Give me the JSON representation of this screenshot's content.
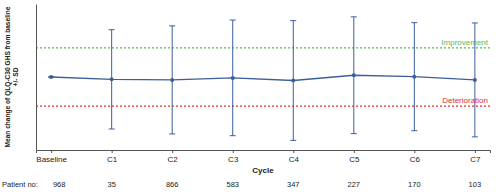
{
  "chart_data": {
    "type": "line",
    "xlabel": "Cycle",
    "ylabel": [
      "Mean change of QLQ-C30 GHS from baseline",
      "+/- SD"
    ],
    "categories": [
      "Baseline",
      "C1",
      "C2",
      "C3",
      "C4",
      "C5",
      "C6",
      "C7"
    ],
    "series": [
      {
        "color": "#3c5f9c",
        "marker": "circle",
        "values": [
          0,
          -0.8,
          -1.0,
          -0.3,
          -1.2,
          0.6,
          0.1,
          -1.0
        ],
        "errors": [
          0,
          17,
          18.5,
          19.8,
          20.5,
          20.0,
          18.5,
          19.5
        ]
      }
    ],
    "ylim": [
      -25,
      25
    ],
    "tick_labels": "x",
    "annotations": [
      {
        "label": "Improvement",
        "value": 10,
        "color": "#5cb85c",
        "line_style": "dotted"
      },
      {
        "label": "Deterioration",
        "value": -10,
        "color": "#e0302a",
        "line_style": "dotted"
      }
    ],
    "patient_label": "Patient no:",
    "patient_counts": [
      968,
      35,
      866,
      583,
      347,
      227,
      170,
      103
    ]
  }
}
